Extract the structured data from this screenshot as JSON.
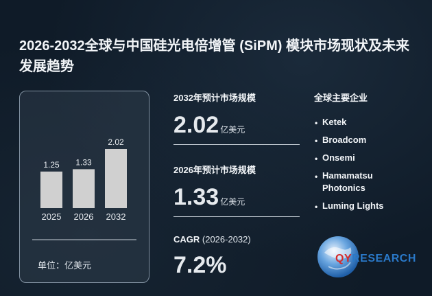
{
  "title": "2026-2032全球与中国硅光电倍增管 (SiPM) 模块市场现状及未来发展趋势",
  "chart_data": {
    "type": "bar",
    "categories": [
      "2025",
      "2026",
      "2032"
    ],
    "values": [
      1.25,
      1.33,
      2.02
    ],
    "value_labels": [
      "1.25",
      "1.33",
      "2.02"
    ],
    "unit_label": "单位：亿美元",
    "bar_color": "#d0d0d0"
  },
  "stats": {
    "m2032": {
      "label": "2032年预计市场规模",
      "value": "2.02",
      "unit": "亿美元"
    },
    "m2026": {
      "label": "2026年预计市场规模",
      "value": "1.33",
      "unit": "亿美元"
    },
    "cagr": {
      "label_bold": "CAGR",
      "label_rest": " (2026-2032)",
      "value": "7.2%"
    }
  },
  "companies": {
    "header": "全球主要企业",
    "bullet": "•",
    "items": [
      {
        "line1": "Ketek",
        "line2": ""
      },
      {
        "line1": "Broadcom",
        "line2": ""
      },
      {
        "line1": "Onsemi",
        "line2": ""
      },
      {
        "line1": "Hamamatsu",
        "line2": "Photonics"
      },
      {
        "line1": "Luming Lights",
        "line2": ""
      }
    ]
  },
  "logo": {
    "brand": "QYRESEARCH",
    "part1": "QY",
    "part2": "RESEARCH",
    "red": "#d42b2b",
    "blue": "#2a79c9"
  }
}
